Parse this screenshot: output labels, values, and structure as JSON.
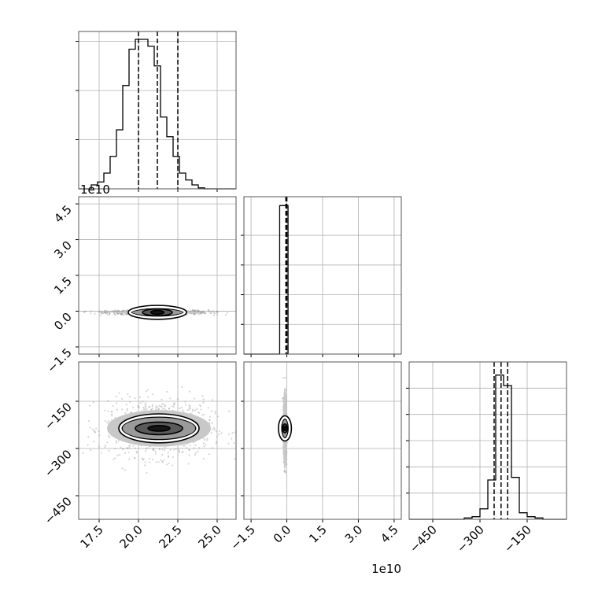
{
  "figure": {
    "type": "corner-plot",
    "offset_label_y": "1e10",
    "offset_label_x": "1e10",
    "colors": {
      "line": "#000000",
      "grid": "#b0b0b0",
      "frame": "#555555",
      "scatter": "#8c8c8c",
      "density_levels": [
        "#c8c8c8",
        "#9a9a9a",
        "#5a5a5a",
        "#151515"
      ]
    }
  },
  "chart_data": [
    {
      "id": "p00",
      "type": "histogram",
      "parameter": 0,
      "bin_edges": [
        16.2,
        16.6,
        17.0,
        17.4,
        17.8,
        18.2,
        18.6,
        19.0,
        19.4,
        19.8,
        20.2,
        20.6,
        21.0,
        21.4,
        21.8,
        22.2,
        22.6,
        23.0,
        23.4,
        23.8,
        24.2,
        24.6,
        25.0,
        25.4,
        25.8,
        26.2
      ],
      "counts": [
        0,
        0,
        4,
        7,
        16,
        33,
        60,
        105,
        142,
        152,
        152,
        145,
        125,
        73,
        53,
        33,
        16,
        9,
        4,
        1,
        0,
        0,
        0,
        0,
        0
      ],
      "quantile_lines": [
        20.0,
        21.2,
        22.5
      ],
      "xlim": [
        16.2,
        26.2
      ],
      "ylim": [
        0,
        160
      ],
      "xticks": [
        17.5,
        20.0,
        22.5,
        25.0
      ],
      "yticks": [
        50,
        100,
        150
      ],
      "grid": true
    },
    {
      "id": "p10",
      "type": "2d-density",
      "parameters": [
        0,
        1
      ],
      "xlim": [
        16.2,
        26.2
      ],
      "ylim": [
        -1.8,
        4.8
      ],
      "xticks": [
        17.5,
        20.0,
        22.5,
        25.0
      ],
      "yticks": [
        -1.5,
        0.0,
        1.5,
        3.0,
        4.5
      ],
      "ytick_labels": [
        "−1.5",
        "0.0",
        "1.5",
        "3.0",
        "4.5"
      ],
      "center": [
        21.2,
        -0.05
      ],
      "levels": [
        {
          "rx": 2.8,
          "ry": 0.07
        },
        {
          "rx": 1.65,
          "ry": 0.16
        },
        {
          "rx": 0.95,
          "ry": 0.14
        },
        {
          "rx": 0.42,
          "ry": 0.08
        }
      ],
      "spread": [
        1.6,
        0.05
      ],
      "grid": true
    },
    {
      "id": "p11",
      "type": "histogram",
      "parameter": 1,
      "bin_edges": [
        -1.8,
        -0.3,
        0.05
      ],
      "counts": [
        0,
        1,
        0
      ],
      "quantile_lines": [
        -0.04,
        -0.02,
        0.0
      ],
      "xlim": [
        -1.8,
        4.8
      ],
      "ylim": [
        0,
        1.06
      ],
      "xticks": [
        -1.5,
        0.0,
        1.5,
        3.0,
        4.5
      ],
      "yticks": [
        0.2,
        0.4,
        0.6,
        0.8
      ],
      "grid": true
    },
    {
      "id": "p20",
      "type": "2d-density",
      "parameters": [
        0,
        2
      ],
      "xlim": [
        16.2,
        26.2
      ],
      "ylim": [
        -525,
        -25
      ],
      "xticks": [
        17.5,
        20.0,
        22.5,
        25.0
      ],
      "yticks": [
        -450,
        -300,
        -150
      ],
      "ytick_labels": [
        "−450",
        "−300",
        "−150"
      ],
      "center": [
        21.3,
        -236
      ],
      "levels": [
        {
          "rx": 3.3,
          "ry": 58
        },
        {
          "rx": 2.35,
          "ry": 36
        },
        {
          "rx": 1.5,
          "ry": 20
        },
        {
          "rx": 0.7,
          "ry": 9
        }
      ],
      "spread": [
        1.7,
        45
      ],
      "grid": true
    },
    {
      "id": "p21",
      "type": "2d-density",
      "parameters": [
        1,
        2
      ],
      "xlim": [
        -1.8,
        4.8
      ],
      "ylim": [
        -525,
        -25
      ],
      "xticks": [
        -1.5,
        0.0,
        1.5,
        3.0,
        4.5
      ],
      "xtick_labels": [
        "−1.5",
        "0.0",
        "1.5",
        "3.0",
        "4.5"
      ],
      "yticks": [
        -450,
        -300,
        -150
      ],
      "center": [
        -0.08,
        -236
      ],
      "levels": [
        {
          "rx": 0.09,
          "ry": 130
        },
        {
          "rx": 0.14,
          "ry": 30
        },
        {
          "rx": 0.1,
          "ry": 14
        },
        {
          "rx": 0.05,
          "ry": 7
        }
      ],
      "spread": [
        0.03,
        45
      ],
      "grid": true
    },
    {
      "id": "p22",
      "type": "histogram",
      "parameter": 2,
      "bin_edges": [
        -525,
        -500,
        -475,
        -450,
        -425,
        -400,
        -375,
        -350,
        -325,
        -300,
        -275,
        -250,
        -225,
        -200,
        -175,
        -150,
        -125,
        -100,
        -75,
        -50,
        -25
      ],
      "counts": [
        0,
        0,
        0,
        0,
        0,
        0,
        0,
        1,
        2,
        8,
        30,
        110,
        102,
        32,
        5,
        2,
        1,
        0,
        0,
        0
      ],
      "quantile_lines": [
        -255,
        -233,
        -212
      ],
      "xlim": [
        -525,
        -25
      ],
      "ylim": [
        0,
        120
      ],
      "xticks": [
        -450,
        -300,
        -150
      ],
      "xtick_labels": [
        "−450",
        "−300",
        "−150"
      ],
      "yticks": [
        20,
        40,
        60,
        80,
        100
      ],
      "grid": true
    }
  ],
  "tick_labels": {
    "x_col0": [
      "17.5",
      "20.0",
      "22.5",
      "25.0"
    ],
    "x_col1": [
      "−1.5",
      "0.0",
      "1.5",
      "3.0",
      "4.5"
    ],
    "x_col2": [
      "−450",
      "−300",
      "−150"
    ],
    "y_row1": [
      "−1.5",
      "0.0",
      "1.5",
      "3.0",
      "4.5"
    ],
    "y_row2": [
      "−450",
      "−300",
      "−150"
    ]
  }
}
